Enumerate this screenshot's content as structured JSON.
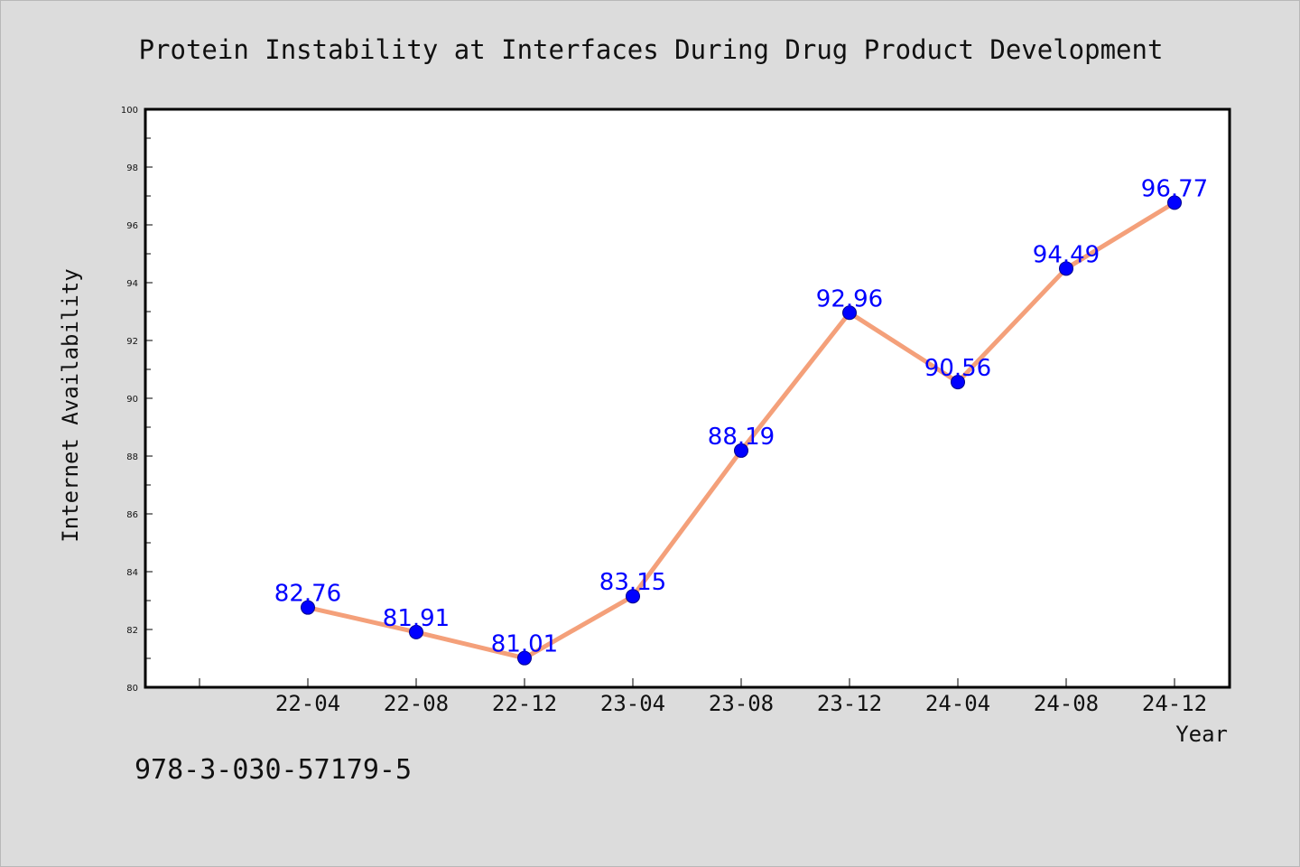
{
  "chart_data": {
    "type": "line",
    "title": "Protein Instability at Interfaces During Drug Product Development",
    "xlabel": "Year",
    "ylabel": "Internet Availability",
    "categories": [
      "22-04",
      "22-08",
      "22-12",
      "23-04",
      "23-08",
      "23-12",
      "24-04",
      "24-08",
      "24-12"
    ],
    "values": [
      82.76,
      81.91,
      81.01,
      83.15,
      88.19,
      92.96,
      90.56,
      94.49,
      96.77
    ],
    "data_labels": [
      "82.76",
      "81.91",
      "81.01",
      "83.15",
      "88.19",
      "92.96",
      "90.56",
      "94.49",
      "96.77"
    ],
    "ylim": [
      80,
      100
    ],
    "yticks": [
      "80",
      "82",
      "84",
      "86",
      "88",
      "90",
      "92",
      "94",
      "96",
      "98",
      "100"
    ],
    "grid": false,
    "legend": "none",
    "colors": {
      "line": "#f4a07a",
      "marker": "#0000ff",
      "data_label": "#0000ff",
      "plot_background": "#ffffff",
      "page_background": "#dcdcdc"
    }
  },
  "footnote": "978-3-030-57179-5"
}
